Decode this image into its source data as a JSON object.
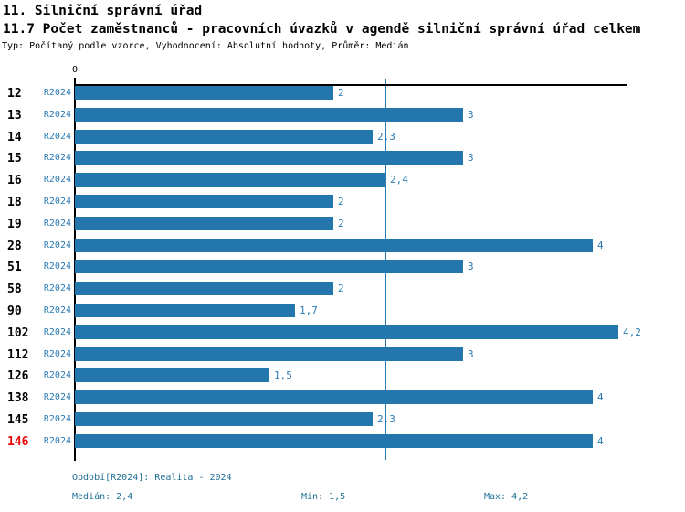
{
  "header": {
    "title": "11. Silniční správní úřad",
    "subtitle": "11.7 Počet zaměstnanců - pracovních úvazků v agendě silniční správní úřad celkem",
    "meta": "Typ: Počítaný podle vzorce, Vyhodnocení: Absolutní hodnoty, Průměr: Medián"
  },
  "chart_data": {
    "type": "bar",
    "orientation": "horizontal",
    "title": "11.7 Počet zaměstnanců - pracovních úvazků v agendě silniční správní úřad celkem",
    "axis_zero_label": "0",
    "period_label": "R2024",
    "categories": [
      "12",
      "13",
      "14",
      "15",
      "16",
      "18",
      "19",
      "28",
      "51",
      "58",
      "90",
      "102",
      "112",
      "126",
      "138",
      "145",
      "146"
    ],
    "values": [
      2,
      3,
      2.3,
      3,
      2.4,
      2,
      2,
      4,
      3,
      2,
      1.7,
      4.2,
      3,
      1.5,
      4,
      2.3,
      4
    ],
    "value_labels": [
      "2",
      "3",
      "2,3",
      "3",
      "2,4",
      "2",
      "2",
      "4",
      "3",
      "2",
      "1,7",
      "4,2",
      "3",
      "1,5",
      "4",
      "2,3",
      "4"
    ],
    "xlim": [
      0,
      4.27
    ],
    "grid": false,
    "median_line_value": 2.4,
    "median": 2.4,
    "min": 1.5,
    "max": 4.2,
    "highlighted_category": "146",
    "colors": {
      "bar": "#2477ad",
      "median_line": "#2b7bb4",
      "value_text": "#2b7bb4",
      "period_text": "#2b7bb4",
      "category_text": "#000000",
      "highlight_text": "#e50a0a",
      "footer_text": "#1f6e94",
      "axis": "#000000"
    }
  },
  "footer": {
    "period": "Období[R2024]: Realita - 2024",
    "median": "Medián: 2,4",
    "min": "Min: 1,5",
    "max": "Max: 4,2"
  }
}
